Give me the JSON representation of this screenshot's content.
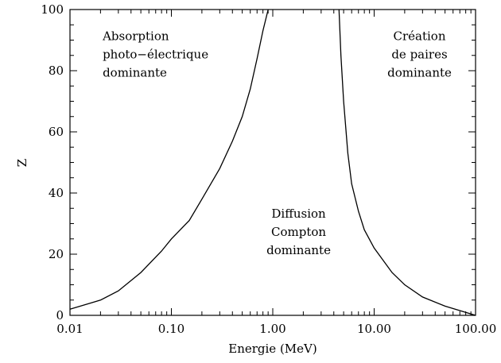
{
  "chart_data": {
    "type": "line",
    "xlabel": "Energie (MeV)",
    "ylabel": "Z",
    "x_scale": "log",
    "xlim": [
      0.01,
      100.0
    ],
    "ylim": [
      0,
      100
    ],
    "x_ticks": [
      {
        "value": 0.01,
        "label": "0.01"
      },
      {
        "value": 0.1,
        "label": "0.10"
      },
      {
        "value": 1.0,
        "label": "1.00"
      },
      {
        "value": 10.0,
        "label": "10.00"
      },
      {
        "value": 100.0,
        "label": "100.00"
      }
    ],
    "y_ticks": [
      {
        "value": 0,
        "label": "0"
      },
      {
        "value": 20,
        "label": "20"
      },
      {
        "value": 40,
        "label": "40"
      },
      {
        "value": 60,
        "label": "60"
      },
      {
        "value": 80,
        "label": "80"
      },
      {
        "value": 100,
        "label": "100"
      }
    ],
    "grid": false,
    "series": [
      {
        "x": [
          0.01,
          0.02,
          0.03,
          0.05,
          0.08,
          0.1,
          0.15,
          0.2,
          0.3,
          0.4,
          0.5,
          0.6,
          0.7,
          0.8,
          0.9
        ],
        "y": [
          2,
          5,
          8,
          14,
          21,
          25,
          31,
          38,
          48,
          57,
          65,
          74,
          84,
          93,
          100
        ]
      },
      {
        "x": [
          4.5,
          4.7,
          5.0,
          5.5,
          6.0,
          7.0,
          8.0,
          10.0,
          15.0,
          20.0,
          30.0,
          50.0,
          100.0
        ],
        "y": [
          100,
          85,
          70,
          53,
          43,
          34,
          28,
          22,
          14,
          10,
          6,
          3,
          0
        ]
      }
    ],
    "annotations": [
      {
        "lines": [
          "Absorption",
          "photo−électrique",
          "dominante"
        ],
        "x": 0.021,
        "y": 90,
        "anchor": "start"
      },
      {
        "lines": [
          "Diffusion",
          "Compton",
          "dominante"
        ],
        "x": 1.8,
        "y": 32,
        "anchor": "middle"
      },
      {
        "lines": [
          "Création",
          "de paires",
          "dominante"
        ],
        "x": 28,
        "y": 90,
        "anchor": "middle"
      }
    ]
  }
}
